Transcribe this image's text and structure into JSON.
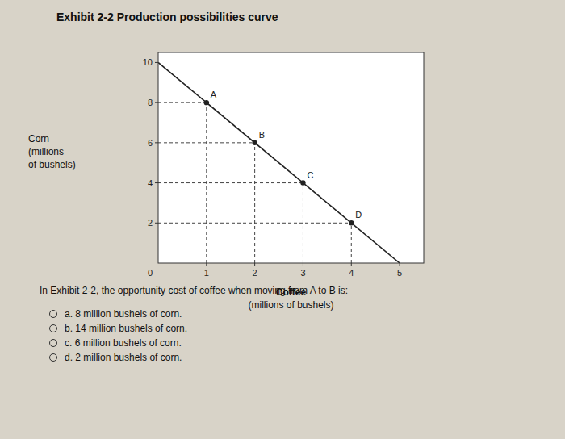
{
  "chart_data": {
    "type": "line",
    "title": "Exhibit 2-2 Production possibilities curve",
    "xlabel": [
      "Coffee",
      "(millions of bushels)"
    ],
    "ylabel": [
      "Corn",
      "(millions",
      "of bushels)"
    ],
    "series": [
      {
        "type": "line",
        "x": [
          0,
          5
        ],
        "values": [
          10,
          0
        ],
        "color": "#222222",
        "line_style": "solid"
      },
      {
        "type": "scatter",
        "x": [
          1,
          2,
          3,
          4
        ],
        "values": [
          8,
          6,
          4,
          2
        ],
        "labels": [
          "A",
          "B",
          "C",
          "D"
        ],
        "color": "#222222",
        "marker": "circle",
        "line_style": "dashed"
      }
    ],
    "xlim": [
      0,
      5.5
    ],
    "ylim": [
      0,
      10.5
    ],
    "xticks": [
      1,
      2,
      3,
      4,
      5
    ],
    "yticks": [
      2,
      4,
      6,
      8,
      10
    ],
    "grid": false,
    "annotations": [
      {
        "text": "0",
        "x": 0,
        "y": 0
      }
    ],
    "question": "In Exhibit 2-2, the opportunity cost of coffee when moving from A to B is:",
    "options": [
      "a. 8 million bushels of corn.",
      "b. 14 million bushels of corn.",
      "c. 6 million bushels of corn.",
      "d. 2 million bushels of corn."
    ]
  }
}
